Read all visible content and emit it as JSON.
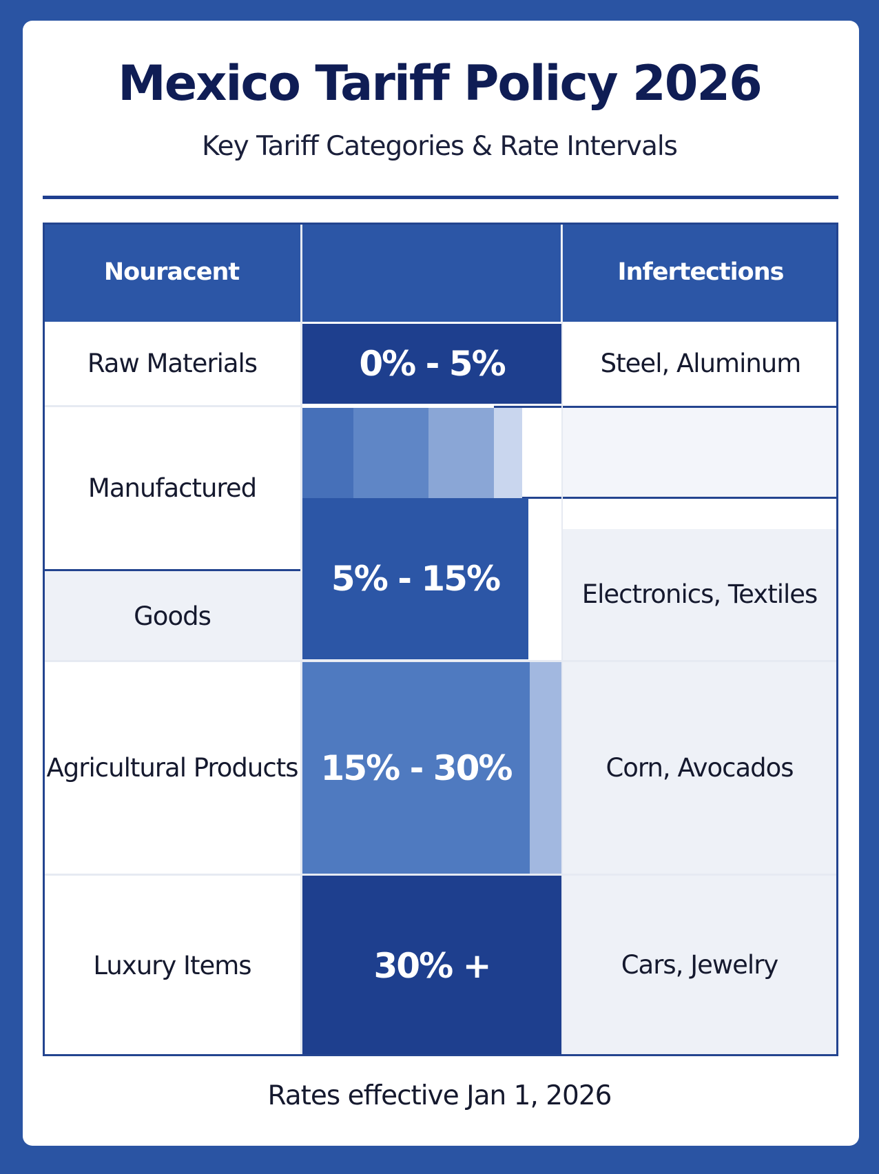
{
  "title": "Mexico Tariff Policy 2026",
  "subtitle": "Key Tariff Categories & Rate Intervals",
  "table": {
    "headers": [
      "Nouracent",
      "",
      "Infertections"
    ],
    "rows": [
      {
        "category": "Raw Materials",
        "rate": "0% - 5%",
        "examples": "Steel, Aluminum"
      },
      {
        "category": "Manufactured",
        "category2": "Goods",
        "rate": "5% - 15%",
        "examples": "Electronics, Textiles"
      },
      {
        "category": "Agricultural Products",
        "rate": "15% - 30%",
        "examples": "Corn, Avocados"
      },
      {
        "category": "Luxury Items",
        "rate": "30% +",
        "examples": "Cars, Jewelry"
      }
    ]
  },
  "footer": "Rates effective Jan 1, 2026",
  "colors": {
    "background": "#2a54a3",
    "title": "#0f1d55",
    "header": "#2c56a6",
    "dark_rate": "#1e3f8e",
    "medium_rate": "#4f7ac0"
  }
}
